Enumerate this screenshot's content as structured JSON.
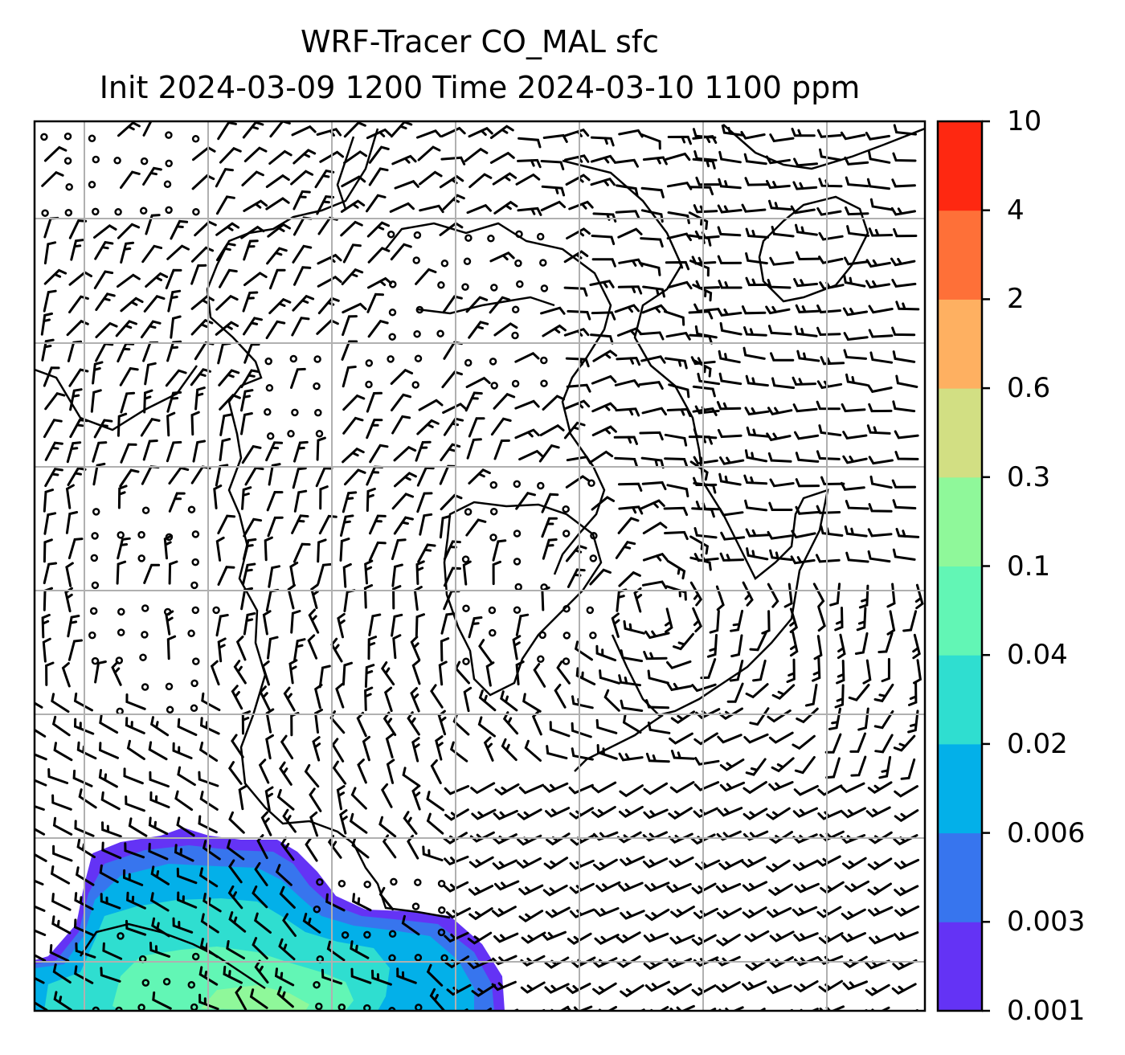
{
  "title": {
    "line1": "WRF-Tracer CO_MAL sfc",
    "line2": "Init 2024-03-09 1200 Time 2024-03-10 1100 ppm"
  },
  "colorbar": {
    "levels": [
      "0.001",
      "0.003",
      "0.006",
      "0.02",
      "0.04",
      "0.1",
      "0.3",
      "0.6",
      "2",
      "4",
      "10"
    ],
    "colors": [
      "#6433f5",
      "#3775ee",
      "#03b0e9",
      "#2fded0",
      "#62f6b5",
      "#8ff89a",
      "#d2df83",
      "#feb061",
      "#fe7038",
      "#fe2811"
    ]
  },
  "map": {
    "field": "CO_MAL tracer concentration (shaded), surface wind barbs",
    "wind_barbs": "present",
    "gridlines": true,
    "coastlines": true
  }
}
